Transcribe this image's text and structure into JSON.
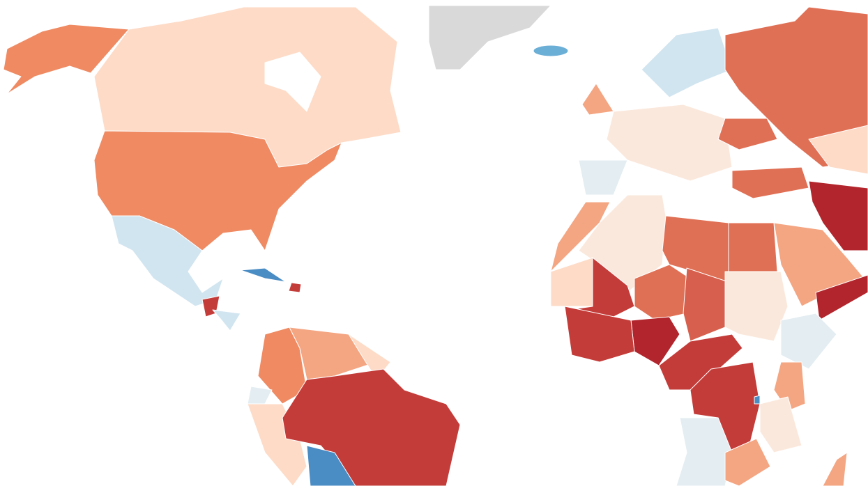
{
  "map": {
    "fills": [
      "#d9d9d9",
      "#fddbc7",
      "#fbe8dc",
      "#f4a582",
      "#ef8a62",
      "#e07055",
      "#d6604d",
      "#c43c39",
      "#b2252c",
      "#d1e5f0",
      "#e3edf2",
      "#6baed6",
      "#4a8cc4"
    ]
  }
}
